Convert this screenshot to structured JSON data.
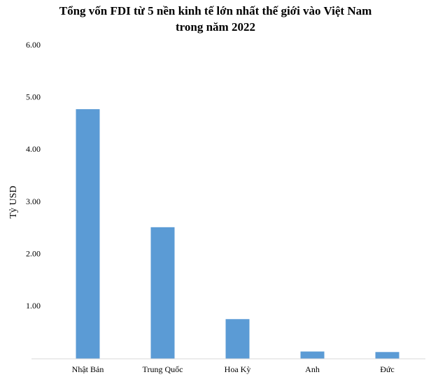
{
  "chart_data": {
    "type": "bar",
    "title": [
      "Tổng vốn FDI từ 5 nền kinh tế lớn nhất thế giới vào Việt Nam",
      "trong năm 2022"
    ],
    "y_label": "Tỷ USD",
    "categories": [
      "Nhật Bản",
      "Trung Quốc",
      "Hoa Kỳ",
      "Anh",
      "Đức"
    ],
    "values": [
      4.78,
      2.52,
      0.76,
      0.14,
      0.13
    ],
    "color": "#5b9bd5",
    "ylim": [
      0,
      6
    ],
    "yticks": [
      {
        "value": 0,
        "label": "-"
      },
      {
        "value": 1,
        "label": "1.00"
      },
      {
        "value": 2,
        "label": "2.00"
      },
      {
        "value": 3,
        "label": "3.00"
      },
      {
        "value": 4,
        "label": "4.00"
      },
      {
        "value": 5,
        "label": "5.00"
      },
      {
        "value": 6,
        "label": "6.00"
      }
    ],
    "grid": false
  }
}
